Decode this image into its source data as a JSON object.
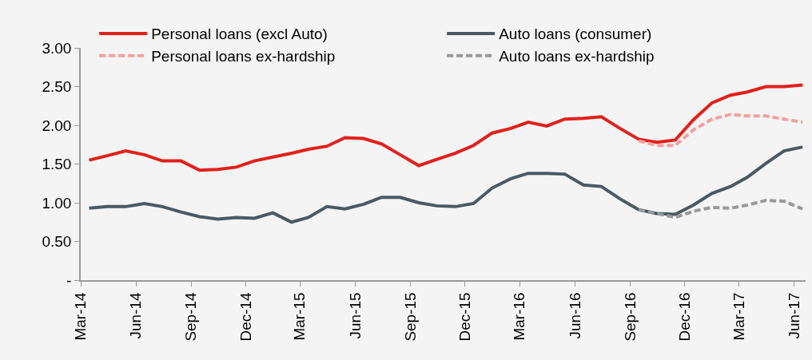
{
  "chart_data": {
    "type": "line",
    "x": [
      "2014-03-15",
      "2014-04-15",
      "2014-05-15",
      "2014-06-15",
      "2014-07-15",
      "2014-08-15",
      "2014-09-15",
      "2014-10-15",
      "2014-11-15",
      "2014-12-15",
      "2015-01-15",
      "2015-02-15",
      "2015-03-15",
      "2015-04-15",
      "2015-05-15",
      "2015-06-15",
      "2015-07-15",
      "2015-08-15",
      "2015-09-15",
      "2015-10-15",
      "2015-11-15",
      "2015-12-15",
      "2016-01-15",
      "2016-02-15",
      "2016-03-15",
      "2016-04-15",
      "2016-05-15",
      "2016-06-15",
      "2016-07-15",
      "2016-08-15",
      "2016-09-15",
      "2016-10-15",
      "2016-11-15",
      "2016-12-15",
      "2017-01-15",
      "2017-02-15",
      "2017-03-15",
      "2017-04-15",
      "2017-05-15",
      "2017-06-15"
    ],
    "series": [
      {
        "name": "Personal loans (excl Auto)",
        "color": "#e2201b",
        "line_style": "solid",
        "values": [
          1.55,
          1.61,
          1.67,
          1.62,
          1.54,
          1.54,
          1.42,
          1.43,
          1.46,
          1.54,
          1.59,
          1.64,
          1.69,
          1.73,
          1.84,
          1.83,
          1.76,
          1.62,
          1.48,
          1.56,
          1.64,
          1.74,
          1.9,
          1.96,
          2.04,
          1.99,
          2.08,
          2.09,
          2.11,
          1.96,
          1.82,
          1.78,
          1.81,
          2.07,
          2.29,
          2.39,
          2.43,
          2.5,
          2.5,
          2.52
        ]
      },
      {
        "name": "Auto loans (consumer)",
        "color": "#4a5a63",
        "line_style": "solid",
        "values": [
          0.93,
          0.95,
          0.95,
          0.99,
          0.95,
          0.88,
          0.82,
          0.79,
          0.81,
          0.8,
          0.87,
          0.75,
          0.81,
          0.95,
          0.92,
          0.98,
          1.07,
          1.07,
          1.0,
          0.96,
          0.95,
          0.99,
          1.19,
          1.31,
          1.38,
          1.38,
          1.37,
          1.23,
          1.21,
          1.05,
          0.91,
          0.86,
          0.85,
          0.97,
          1.12,
          1.21,
          1.33,
          1.51,
          1.67,
          1.72
        ]
      },
      {
        "name": "Personal loans ex-hardship",
        "color": "#f4a09c",
        "line_style": "dashed",
        "values": [
          null,
          null,
          null,
          null,
          null,
          null,
          null,
          null,
          null,
          null,
          null,
          null,
          null,
          null,
          null,
          null,
          null,
          null,
          null,
          null,
          null,
          null,
          null,
          null,
          null,
          null,
          null,
          null,
          null,
          null,
          1.8,
          1.74,
          1.74,
          1.94,
          2.08,
          2.14,
          2.12,
          2.12,
          2.08,
          2.04
        ]
      },
      {
        "name": "Auto loans ex-hardship",
        "color": "#999999",
        "line_style": "dashed",
        "values": [
          null,
          null,
          null,
          null,
          null,
          null,
          null,
          null,
          null,
          null,
          null,
          null,
          null,
          null,
          null,
          null,
          null,
          null,
          null,
          null,
          null,
          null,
          null,
          null,
          null,
          null,
          null,
          null,
          null,
          null,
          0.91,
          0.86,
          0.81,
          0.89,
          0.94,
          0.93,
          0.97,
          1.03,
          1.02,
          0.92
        ]
      }
    ],
    "xlim": [
      "2014-03-01",
      "2017-06-20"
    ],
    "xticks": [
      {
        "value": "2014-03-01",
        "label": "Mar-14"
      },
      {
        "value": "2014-06-01",
        "label": "Jun-14"
      },
      {
        "value": "2014-09-01",
        "label": "Sep-14"
      },
      {
        "value": "2014-12-01",
        "label": "Dec-14"
      },
      {
        "value": "2015-03-01",
        "label": "Mar-15"
      },
      {
        "value": "2015-06-01",
        "label": "Jun-15"
      },
      {
        "value": "2015-09-01",
        "label": "Sep-15"
      },
      {
        "value": "2015-12-01",
        "label": "Dec-15"
      },
      {
        "value": "2016-03-01",
        "label": "Mar-16"
      },
      {
        "value": "2016-06-01",
        "label": "Jun-16"
      },
      {
        "value": "2016-09-01",
        "label": "Sep-16"
      },
      {
        "value": "2016-12-01",
        "label": "Dec-16"
      },
      {
        "value": "2017-03-01",
        "label": "Mar-17"
      },
      {
        "value": "2017-06-01",
        "label": "Jun-17"
      }
    ],
    "ylim": [
      0,
      3
    ],
    "yticks": [
      {
        "value": 0,
        "label": "-"
      },
      {
        "value": 0.5,
        "label": "0.50"
      },
      {
        "value": 1,
        "label": "1.00"
      },
      {
        "value": 1.5,
        "label": "1.50"
      },
      {
        "value": 2,
        "label": "2.00"
      },
      {
        "value": 2.5,
        "label": "2.50"
      },
      {
        "value": 3,
        "label": "3.00"
      }
    ],
    "grid": false,
    "legend": "top",
    "marker": "none"
  }
}
